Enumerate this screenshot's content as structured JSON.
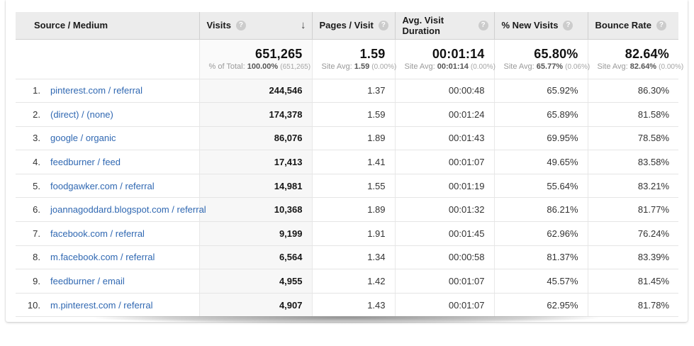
{
  "colors": {
    "link_blue": "#3068b2",
    "header_bg": "#ececec",
    "sorted_column_bg": "#f7f7f7",
    "row_border": "#e5e5e5"
  },
  "icons": {
    "help": "?",
    "sort_descending": "↓"
  },
  "header": {
    "source_medium": "Source / Medium",
    "visits": "Visits",
    "pages_visit": "Pages / Visit",
    "avg_duration": "Avg. Visit Duration",
    "new_visits": "% New Visits",
    "bounce_rate": "Bounce Rate"
  },
  "summary": {
    "visits": {
      "value": "651,265",
      "label": "% of Total:",
      "avg": "100.00%",
      "paren": "(651,265)"
    },
    "pages": {
      "value": "1.59",
      "label": "Site Avg:",
      "avg": "1.59",
      "paren": "(0.00%)"
    },
    "duration": {
      "value": "00:01:14",
      "label": "Site Avg:",
      "avg": "00:01:14",
      "paren": "(0.00%)"
    },
    "new_visits": {
      "value": "65.80%",
      "label": "Site Avg:",
      "avg": "65.77%",
      "paren": "(0.06%)"
    },
    "bounce": {
      "value": "82.64%",
      "label": "Site Avg:",
      "avg": "82.64%",
      "paren": "(0.00%)"
    }
  },
  "rows": [
    {
      "rank": "1.",
      "source": "pinterest.com / referral",
      "visits": "244,546",
      "pages": "1.37",
      "duration": "00:00:48",
      "new_visits": "65.92%",
      "bounce": "86.30%"
    },
    {
      "rank": "2.",
      "source": "(direct) / (none)",
      "visits": "174,378",
      "pages": "1.59",
      "duration": "00:01:24",
      "new_visits": "65.89%",
      "bounce": "81.58%"
    },
    {
      "rank": "3.",
      "source": "google / organic",
      "visits": "86,076",
      "pages": "1.89",
      "duration": "00:01:43",
      "new_visits": "69.95%",
      "bounce": "78.58%"
    },
    {
      "rank": "4.",
      "source": "feedburner / feed",
      "visits": "17,413",
      "pages": "1.41",
      "duration": "00:01:07",
      "new_visits": "49.65%",
      "bounce": "83.58%"
    },
    {
      "rank": "5.",
      "source": "foodgawker.com / referral",
      "visits": "14,981",
      "pages": "1.55",
      "duration": "00:01:19",
      "new_visits": "55.64%",
      "bounce": "83.21%"
    },
    {
      "rank": "6.",
      "source": "joannagoddard.blogspot.com / referral",
      "visits": "10,368",
      "pages": "1.89",
      "duration": "00:01:32",
      "new_visits": "86.21%",
      "bounce": "81.77%"
    },
    {
      "rank": "7.",
      "source": "facebook.com / referral",
      "visits": "9,199",
      "pages": "1.91",
      "duration": "00:01:45",
      "new_visits": "62.96%",
      "bounce": "76.24%"
    },
    {
      "rank": "8.",
      "source": "m.facebook.com / referral",
      "visits": "6,564",
      "pages": "1.34",
      "duration": "00:00:58",
      "new_visits": "81.37%",
      "bounce": "83.39%"
    },
    {
      "rank": "9.",
      "source": "feedburner / email",
      "visits": "4,955",
      "pages": "1.42",
      "duration": "00:01:07",
      "new_visits": "45.57%",
      "bounce": "81.45%"
    },
    {
      "rank": "10.",
      "source": "m.pinterest.com / referral",
      "visits": "4,907",
      "pages": "1.43",
      "duration": "00:01:07",
      "new_visits": "62.95%",
      "bounce": "81.78%"
    }
  ]
}
